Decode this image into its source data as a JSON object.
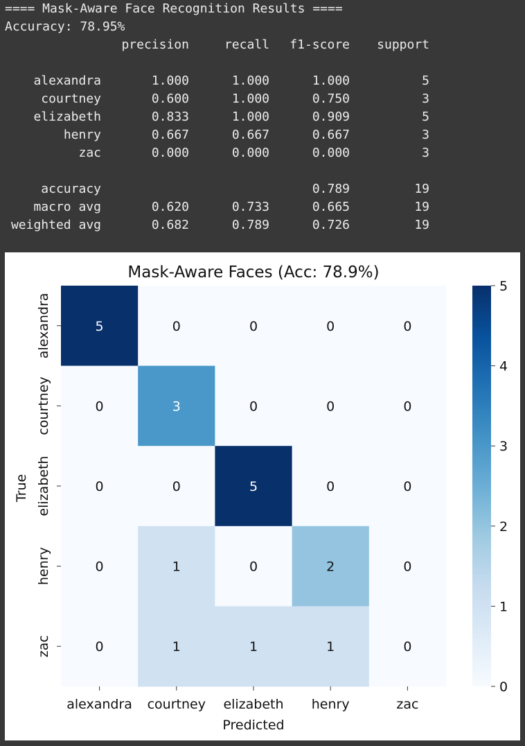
{
  "console": {
    "header_line": "==== Mask-Aware Face Recognition Results ====",
    "accuracy_line": "Accuracy: 78.95%",
    "report": {
      "columns": [
        "precision",
        "recall",
        "f1-score",
        "support"
      ],
      "rows": [
        {
          "label": "alexandra",
          "values": [
            "1.000",
            "1.000",
            "1.000",
            "5"
          ]
        },
        {
          "label": "courtney",
          "values": [
            "0.600",
            "1.000",
            "0.750",
            "3"
          ]
        },
        {
          "label": "elizabeth",
          "values": [
            "0.833",
            "1.000",
            "0.909",
            "5"
          ]
        },
        {
          "label": "henry",
          "values": [
            "0.667",
            "0.667",
            "0.667",
            "3"
          ]
        },
        {
          "label": "zac",
          "values": [
            "0.000",
            "0.000",
            "0.000",
            "3"
          ]
        }
      ],
      "summary": [
        {
          "label": "accuracy",
          "values": [
            "",
            "",
            "0.789",
            "19"
          ]
        },
        {
          "label": "macro avg",
          "values": [
            "0.620",
            "0.733",
            "0.665",
            "19"
          ]
        },
        {
          "label": "weighted avg",
          "values": [
            "0.682",
            "0.789",
            "0.726",
            "19"
          ]
        }
      ]
    }
  },
  "chart_data": {
    "type": "heatmap",
    "title": "Mask-Aware Faces (Acc: 78.9%)",
    "xlabel": "Predicted",
    "ylabel": "True",
    "x_categories": [
      "alexandra",
      "courtney",
      "elizabeth",
      "henry",
      "zac"
    ],
    "y_categories": [
      "alexandra",
      "courtney",
      "elizabeth",
      "henry",
      "zac"
    ],
    "matrix": [
      [
        5,
        0,
        0,
        0,
        0
      ],
      [
        0,
        3,
        0,
        0,
        0
      ],
      [
        0,
        0,
        5,
        0,
        0
      ],
      [
        0,
        1,
        0,
        2,
        0
      ],
      [
        0,
        1,
        1,
        1,
        0
      ]
    ],
    "colorbar": {
      "min": 0,
      "max": 5,
      "ticks": [
        "0",
        "1",
        "2",
        "3",
        "4",
        "5"
      ]
    },
    "colormap": "Blues",
    "colors": {
      "low": "#f7fbff",
      "high": "#08306b"
    }
  }
}
